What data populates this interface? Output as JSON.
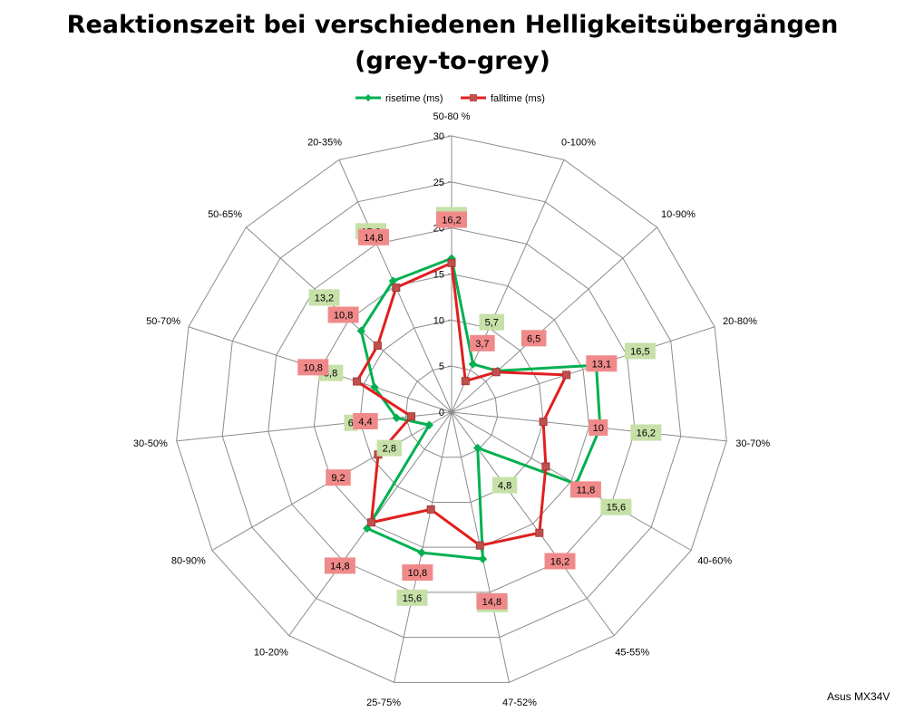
{
  "title_line1": "Reaktionszeit bei verschiedenen Helligkeitsübergängen",
  "title_line2": "(grey-to-grey)",
  "source": "Asus MX34V",
  "chart_data": {
    "type": "radar",
    "categories": [
      "50-80 %",
      "0-100%",
      "10-90%",
      "20-80%",
      "30-70%",
      "40-60%",
      "45-55%",
      "47-52%",
      "25-75%",
      "10-20%",
      "80-90%",
      "30-50%",
      "50-70%",
      "50-65%",
      "20-35%"
    ],
    "ticks": [
      0,
      5,
      10,
      15,
      20,
      25,
      30
    ],
    "r_range": [
      0,
      30
    ],
    "legend_position": "top",
    "series": [
      {
        "name": "risetime (ms)",
        "color": "#00b050",
        "label_bg": "#c6e0a8",
        "marker": "diamond",
        "values": [
          16.7,
          5.7,
          6.7,
          16.5,
          16.2,
          15.6,
          4.8,
          16.3,
          15.6,
          15.6,
          2.8,
          6,
          8.8,
          13.2,
          15.6
        ]
      },
      {
        "name": "falltime (ms)",
        "color": "#e01f1f",
        "label_bg": "#f08a8a",
        "marker": "square",
        "values": [
          16.2,
          3.7,
          6.5,
          13.1,
          10,
          11.8,
          16.2,
          14.8,
          10.8,
          14.8,
          9.2,
          4.4,
          10.8,
          10.8,
          14.8
        ]
      }
    ],
    "value_labels": {
      "risetime (ms)": [
        "16,7",
        "5,7",
        "6,7",
        "16,5",
        "16,2",
        "15,6",
        "4,8",
        "16,3",
        "15,6",
        "15,6",
        "2,8",
        "6",
        "8,8",
        "13,2",
        "15,6"
      ],
      "falltime (ms)": [
        "16,2",
        "3,7",
        "6,5",
        "13,1",
        "10",
        "11,8",
        "16,2",
        "14,8",
        "10,8",
        "14,8",
        "9,2",
        "4,4",
        "10,8",
        "10,8",
        "14,8"
      ]
    }
  }
}
